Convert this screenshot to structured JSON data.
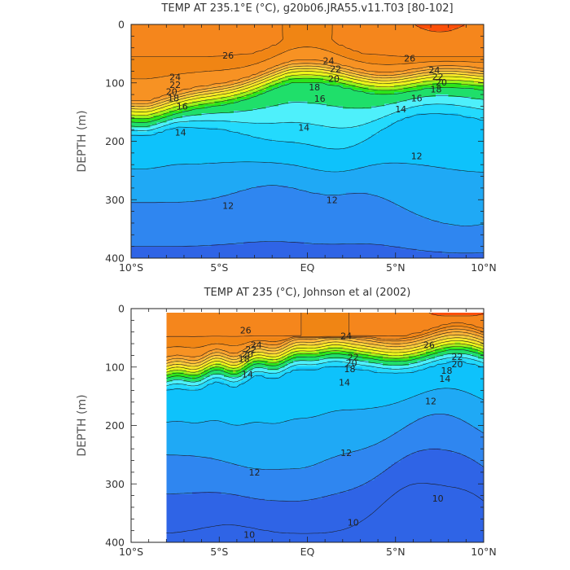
{
  "chart_data": [
    {
      "type": "heatmap",
      "title": "TEMP AT 235.1°E (°C), g20b06.JRA55.v11.T03 [80-102]",
      "xlabel": "",
      "ylabel": "DEPTH (m)",
      "xlim": [
        -10,
        10
      ],
      "ylim": [
        400,
        0
      ],
      "x_tick_labels": [
        {
          "x": -10,
          "label": "10°S"
        },
        {
          "x": -5,
          "label": "5°S"
        },
        {
          "x": 0,
          "label": "EQ"
        },
        {
          "x": 5,
          "label": "5°N"
        },
        {
          "x": 10,
          "label": "10°N"
        }
      ],
      "y_tick_labels": [
        {
          "y": 0,
          "label": "0"
        },
        {
          "y": 100,
          "label": "100"
        },
        {
          "y": 200,
          "label": "200"
        },
        {
          "y": 300,
          "label": "300"
        },
        {
          "y": 400,
          "label": "400"
        }
      ],
      "levels": [
        10,
        11,
        12,
        13,
        14,
        15,
        16,
        17,
        18,
        19,
        20,
        21,
        22,
        23,
        24,
        25,
        26,
        27,
        28
      ],
      "data_lat_range": [
        -10,
        10
      ],
      "contour_labels": [
        {
          "lat": 5.8,
          "depth": 58,
          "text": "26"
        },
        {
          "lat": 1.2,
          "depth": 62,
          "text": "24"
        },
        {
          "lat": 1.6,
          "depth": 76,
          "text": "22"
        },
        {
          "lat": 1.5,
          "depth": 93,
          "text": "20"
        },
        {
          "lat": 0.4,
          "depth": 107,
          "text": "18"
        },
        {
          "lat": 0.7,
          "depth": 127,
          "text": "16"
        },
        {
          "lat": -0.2,
          "depth": 176,
          "text": "14"
        },
        {
          "lat": 1.4,
          "depth": 300,
          "text": "12"
        },
        {
          "lat": -4.5,
          "depth": 53,
          "text": "26"
        },
        {
          "lat": -7.5,
          "depth": 90,
          "text": "24"
        },
        {
          "lat": -7.5,
          "depth": 103,
          "text": "22"
        },
        {
          "lat": -7.7,
          "depth": 115,
          "text": "20"
        },
        {
          "lat": -7.6,
          "depth": 126,
          "text": "18"
        },
        {
          "lat": -7.1,
          "depth": 140,
          "text": "16"
        },
        {
          "lat": -7.2,
          "depth": 185,
          "text": "14"
        },
        {
          "lat": -4.5,
          "depth": 310,
          "text": "12"
        },
        {
          "lat": 7.2,
          "depth": 78,
          "text": "24"
        },
        {
          "lat": 7.4,
          "depth": 89,
          "text": "22"
        },
        {
          "lat": 7.6,
          "depth": 99,
          "text": "20"
        },
        {
          "lat": 7.3,
          "depth": 111,
          "text": "18"
        },
        {
          "lat": 6.2,
          "depth": 126,
          "text": "16"
        },
        {
          "lat": 5.3,
          "depth": 145,
          "text": "14"
        },
        {
          "lat": 6.2,
          "depth": 225,
          "text": "12"
        }
      ]
    },
    {
      "type": "heatmap",
      "title": "TEMP AT 235 (°C), Johnson et al (2002)",
      "xlabel": "",
      "ylabel": "DEPTH (m)",
      "xlim": [
        -10,
        10
      ],
      "ylim": [
        400,
        0
      ],
      "x_tick_labels": [
        {
          "x": -10,
          "label": "10°S"
        },
        {
          "x": -5,
          "label": "5°S"
        },
        {
          "x": 0,
          "label": "EQ"
        },
        {
          "x": 5,
          "label": "5°N"
        },
        {
          "x": 10,
          "label": "10°N"
        }
      ],
      "y_tick_labels": [
        {
          "y": 0,
          "label": "0"
        },
        {
          "y": 100,
          "label": "100"
        },
        {
          "y": 200,
          "label": "200"
        },
        {
          "y": 300,
          "label": "300"
        },
        {
          "y": 400,
          "label": "400"
        }
      ],
      "levels": [
        10,
        11,
        12,
        13,
        14,
        15,
        16,
        17,
        18,
        19,
        20,
        21,
        22,
        23,
        24,
        25,
        26,
        27,
        28
      ],
      "data_lat_range": [
        -8,
        10
      ],
      "data_depth_range": [
        7,
        400
      ],
      "contour_labels": [
        {
          "lat": -3.5,
          "depth": 37,
          "text": "26"
        },
        {
          "lat": -2.9,
          "depth": 62,
          "text": "24"
        },
        {
          "lat": -3.2,
          "depth": 70,
          "text": "22"
        },
        {
          "lat": -3.4,
          "depth": 78,
          "text": "20"
        },
        {
          "lat": -3.6,
          "depth": 86,
          "text": "18"
        },
        {
          "lat": -3.4,
          "depth": 112,
          "text": "14"
        },
        {
          "lat": 2.2,
          "depth": 47,
          "text": "24"
        },
        {
          "lat": 2.6,
          "depth": 83,
          "text": "22"
        },
        {
          "lat": 2.5,
          "depth": 93,
          "text": "20"
        },
        {
          "lat": 2.4,
          "depth": 103,
          "text": "18"
        },
        {
          "lat": 2.1,
          "depth": 126,
          "text": "14"
        },
        {
          "lat": 6.9,
          "depth": 62,
          "text": "26"
        },
        {
          "lat": 8.5,
          "depth": 82,
          "text": "22"
        },
        {
          "lat": 8.5,
          "depth": 95,
          "text": "20"
        },
        {
          "lat": 7.9,
          "depth": 106,
          "text": "18"
        },
        {
          "lat": 7.8,
          "depth": 120,
          "text": "14"
        },
        {
          "lat": 7.0,
          "depth": 158,
          "text": "12"
        },
        {
          "lat": 2.2,
          "depth": 247,
          "text": "12"
        },
        {
          "lat": -3.0,
          "depth": 280,
          "text": "12"
        },
        {
          "lat": 2.6,
          "depth": 366,
          "text": "10"
        },
        {
          "lat": -3.3,
          "depth": 387,
          "text": "10"
        },
        {
          "lat": 7.4,
          "depth": 325,
          "text": "10"
        }
      ]
    }
  ]
}
